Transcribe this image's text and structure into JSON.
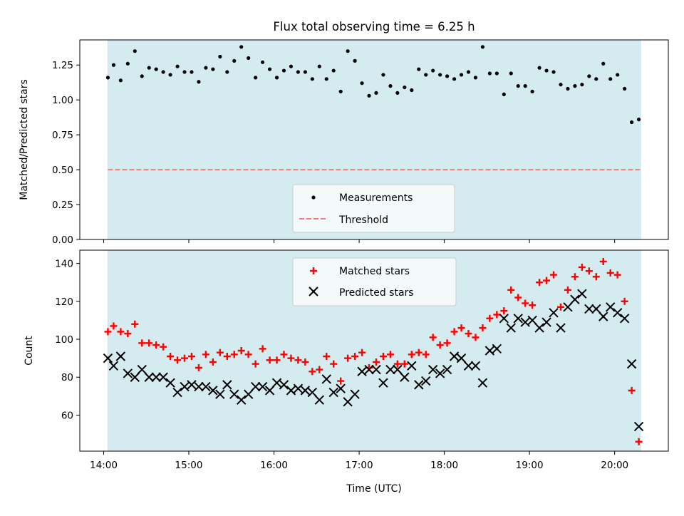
{
  "chart_data": {
    "title": "Flux total observing time = 6.25 h",
    "xlabel": "Time (UTC)",
    "xlim_hours": [
      13.72,
      20.63
    ],
    "x_ticks": [
      "14:00",
      "15:00",
      "16:00",
      "17:00",
      "18:00",
      "19:00",
      "20:00"
    ],
    "observing_window": {
      "start": "14:03",
      "end": "20:18",
      "color": "#d4ebf0"
    },
    "times": [
      "14:03",
      "14:07",
      "14:12",
      "14:17",
      "14:22",
      "14:27",
      "14:32",
      "14:37",
      "14:42",
      "14:47",
      "14:52",
      "14:57",
      "15:02",
      "15:07",
      "15:12",
      "15:17",
      "15:22",
      "15:27",
      "15:32",
      "15:37",
      "15:42",
      "15:47",
      "15:52",
      "15:57",
      "16:02",
      "16:07",
      "16:12",
      "16:17",
      "16:22",
      "16:27",
      "16:32",
      "16:37",
      "16:42",
      "16:47",
      "16:52",
      "16:57",
      "17:02",
      "17:07",
      "17:12",
      "17:17",
      "17:22",
      "17:27",
      "17:32",
      "17:37",
      "17:42",
      "17:47",
      "17:52",
      "17:57",
      "18:02",
      "18:07",
      "18:12",
      "18:17",
      "18:22",
      "18:27",
      "18:32",
      "18:37",
      "18:42",
      "18:47",
      "18:52",
      "18:57",
      "19:02",
      "19:07",
      "19:12",
      "19:17",
      "19:22",
      "19:27",
      "19:32",
      "19:37",
      "19:42",
      "19:47",
      "19:52",
      "19:57",
      "20:02",
      "20:07",
      "20:12",
      "20:17"
    ],
    "charts": [
      {
        "type": "scatter",
        "ylabel": "Matched/Predicted stars",
        "ylim": [
          0,
          1.43
        ],
        "y_ticks": [
          "0.00",
          "0.25",
          "0.50",
          "0.75",
          "1.00",
          "1.25"
        ],
        "y_tick_values": [
          0,
          0.25,
          0.5,
          0.75,
          1.0,
          1.25
        ],
        "threshold": {
          "value": 0.5,
          "color": "#f08080"
        },
        "legend": {
          "position": "lower center",
          "entries": [
            "Measurements",
            "Threshold"
          ]
        },
        "series": [
          {
            "name": "Measurements",
            "marker": "dot",
            "color": "#000000",
            "values": [
              1.16,
              1.25,
              1.14,
              1.26,
              1.35,
              1.17,
              1.23,
              1.22,
              1.2,
              1.18,
              1.24,
              1.2,
              1.2,
              1.13,
              1.23,
              1.22,
              1.31,
              1.2,
              1.28,
              1.38,
              1.3,
              1.16,
              1.27,
              1.22,
              1.16,
              1.21,
              1.24,
              1.2,
              1.2,
              1.15,
              1.24,
              1.15,
              1.21,
              1.06,
              1.35,
              1.28,
              1.12,
              1.03,
              1.05,
              1.18,
              1.1,
              1.05,
              1.09,
              1.07,
              1.22,
              1.18,
              1.21,
              1.18,
              1.17,
              1.15,
              1.18,
              1.2,
              1.16,
              1.38,
              1.19,
              1.19,
              1.04,
              1.19,
              1.1,
              1.1,
              1.06,
              1.23,
              1.21,
              1.2,
              1.11,
              1.08,
              1.1,
              1.11,
              1.17,
              1.15,
              1.26,
              1.15,
              1.18,
              1.08,
              0.84,
              0.86
            ]
          }
        ]
      },
      {
        "type": "scatter",
        "ylabel": "Count",
        "ylim": [
          41,
          147
        ],
        "y_ticks": [
          "60",
          "80",
          "100",
          "120",
          "140"
        ],
        "y_tick_values": [
          60,
          80,
          100,
          120,
          140
        ],
        "legend": {
          "position": "upper center",
          "entries": [
            "Matched stars",
            "Predicted stars"
          ]
        },
        "series": [
          {
            "name": "Matched stars",
            "marker": "plus",
            "color": "#ff0000",
            "values": [
              104,
              107,
              104,
              103,
              108,
              98,
              98,
              97,
              96,
              91,
              89,
              90,
              91,
              85,
              92,
              88,
              93,
              91,
              92,
              94,
              92,
              87,
              95,
              89,
              89,
              92,
              90,
              89,
              88,
              83,
              84,
              91,
              87,
              78,
              90,
              91,
              93,
              85,
              88,
              91,
              92,
              87,
              87,
              92,
              93,
              92,
              101,
              97,
              98,
              104,
              106,
              103,
              101,
              106,
              111,
              113,
              115,
              126,
              122,
              119,
              118,
              130,
              131,
              134,
              117,
              126,
              133,
              138,
              136,
              133,
              141,
              135,
              134,
              120,
              73,
              46
            ]
          },
          {
            "name": "Predicted stars",
            "marker": "x",
            "color": "#000000",
            "values": [
              90,
              86,
              91,
              82,
              80,
              84,
              80,
              80,
              80,
              77,
              72,
              75,
              76,
              75,
              75,
              73,
              71,
              76,
              71,
              68,
              71,
              75,
              75,
              73,
              77,
              76,
              73,
              74,
              73,
              72,
              68,
              79,
              72,
              74,
              67,
              71,
              83,
              84,
              84,
              77,
              84,
              84,
              80,
              86,
              76,
              78,
              84,
              82,
              84,
              91,
              90,
              86,
              86,
              77,
              94,
              95,
              111,
              106,
              111,
              109,
              110,
              106,
              109,
              114,
              106,
              117,
              121,
              124,
              116,
              116,
              112,
              117,
              114,
              111,
              87,
              54
            ]
          }
        ]
      }
    ]
  }
}
